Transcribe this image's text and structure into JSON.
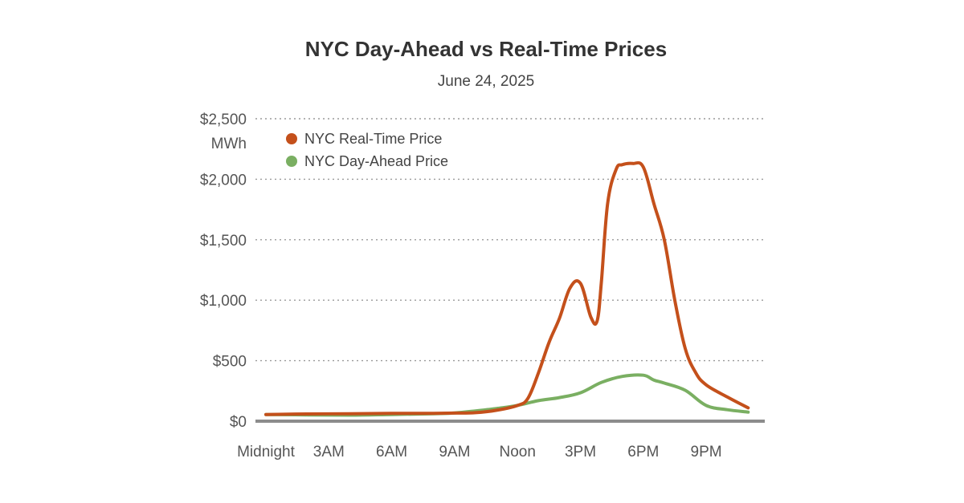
{
  "chart_data": {
    "type": "line",
    "title": "NYC Day-Ahead vs Real-Time Prices",
    "subtitle": "June 24, 2025",
    "ylabel": "MWh",
    "ylim": [
      0,
      2500
    ],
    "xlim": [
      0,
      23.5
    ],
    "y_ticks": [
      {
        "value": 0,
        "label": "$0"
      },
      {
        "value": 500,
        "label": "$500"
      },
      {
        "value": 1000,
        "label": "$1,000"
      },
      {
        "value": 1500,
        "label": "$1,500"
      },
      {
        "value": 2000,
        "label": "$2,000"
      },
      {
        "value": 2500,
        "label": "$2,500"
      }
    ],
    "x_ticks": [
      {
        "value": 0,
        "label": "Midnight"
      },
      {
        "value": 3,
        "label": "3AM"
      },
      {
        "value": 6,
        "label": "6AM"
      },
      {
        "value": 9,
        "label": "9AM"
      },
      {
        "value": 12,
        "label": "Noon"
      },
      {
        "value": 15,
        "label": "3PM"
      },
      {
        "value": 18,
        "label": "6PM"
      },
      {
        "value": 21,
        "label": "9PM"
      }
    ],
    "grid": true,
    "legend_position": "top-left",
    "series": [
      {
        "name": "NYC Real-Time Price",
        "color": "#c4501b",
        "x": [
          0,
          2,
          4,
          6,
          8,
          9,
          10,
          11,
          12,
          12.5,
          13,
          13.5,
          14,
          14.5,
          15,
          15.5,
          15.8,
          16,
          16.3,
          16.7,
          17,
          17.5,
          18,
          18.5,
          19,
          19.5,
          20,
          20.5,
          21,
          22,
          23
        ],
        "values": [
          55,
          60,
          62,
          64,
          65,
          67,
          70,
          90,
          130,
          190,
          400,
          650,
          850,
          1100,
          1140,
          860,
          830,
          1150,
          1800,
          2080,
          2120,
          2130,
          2100,
          1800,
          1500,
          1000,
          600,
          400,
          300,
          200,
          110
        ]
      },
      {
        "name": "NYC Day-Ahead Price",
        "color": "#7aaf62",
        "x": [
          0,
          2,
          4,
          6,
          8,
          9,
          10,
          11,
          12,
          13,
          14,
          15,
          16,
          17,
          18,
          18.5,
          19,
          20,
          21,
          22,
          23
        ],
        "values": [
          55,
          52,
          50,
          55,
          62,
          68,
          85,
          105,
          130,
          170,
          195,
          235,
          320,
          370,
          380,
          340,
          315,
          255,
          130,
          95,
          75
        ]
      }
    ]
  }
}
